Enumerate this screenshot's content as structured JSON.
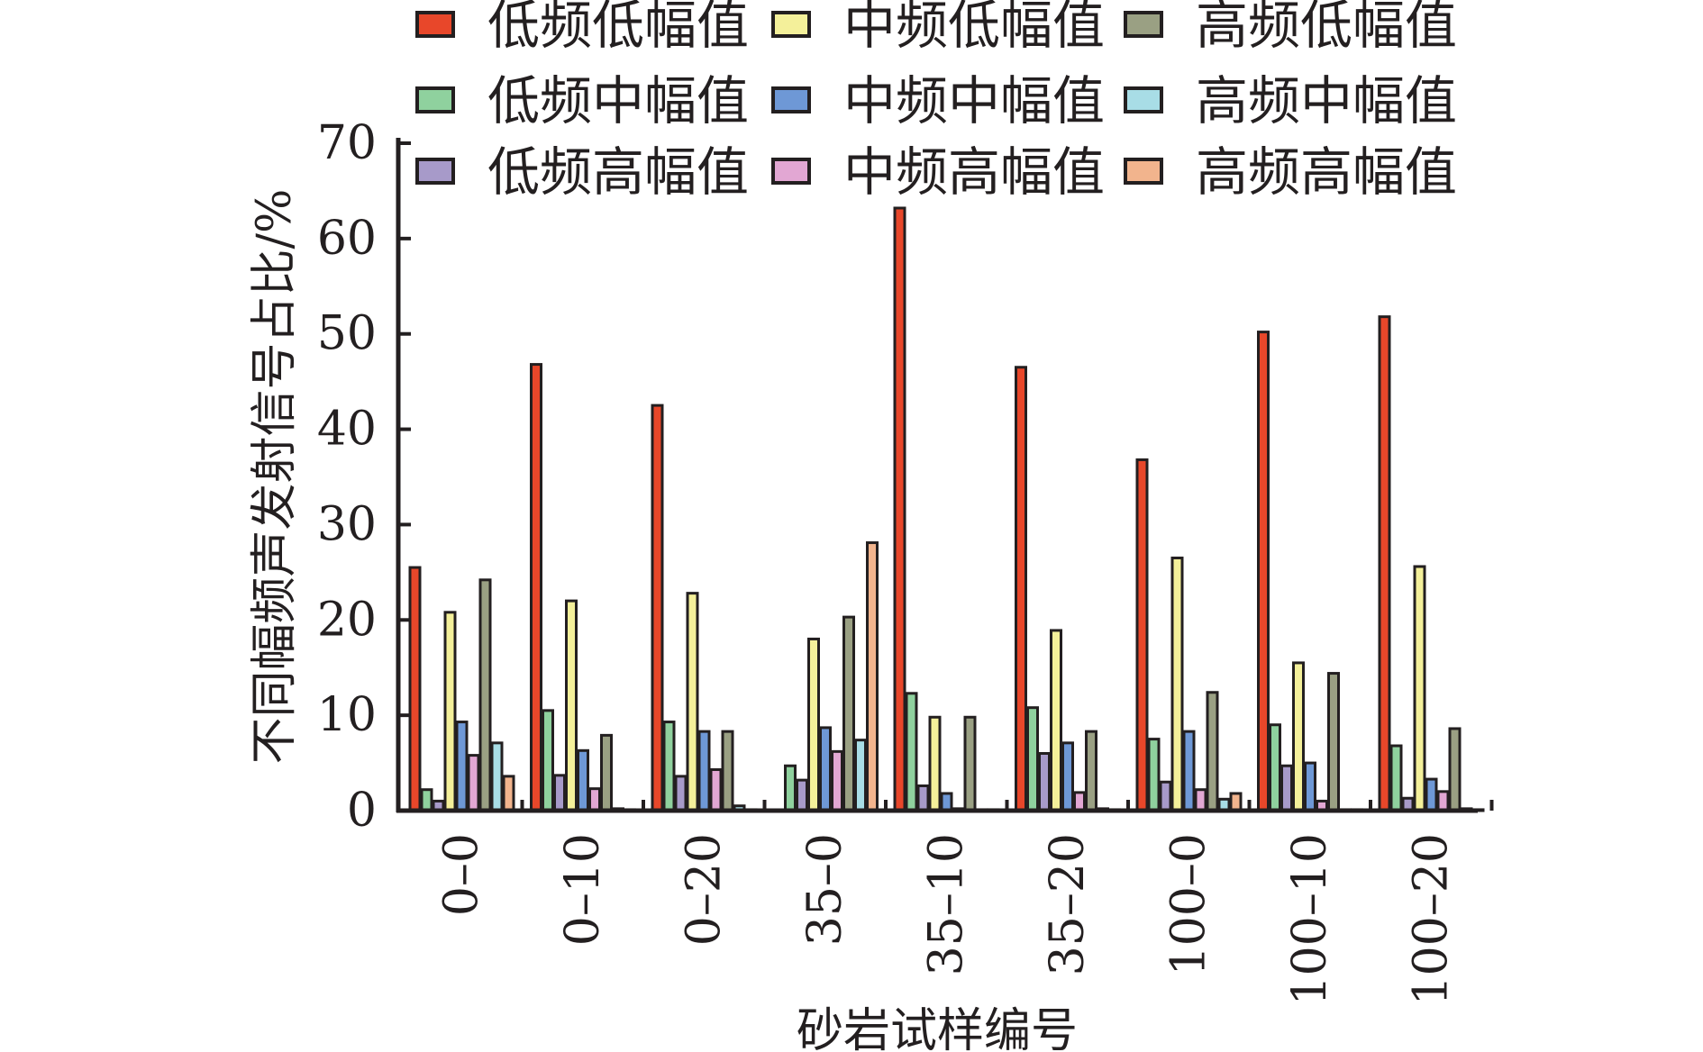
{
  "chart_data": {
    "type": "bar",
    "xlabel": "砂岩试样编号",
    "ylabel": "不同幅频声发射信号占比/%",
    "ylim": [
      0,
      70
    ],
    "yticks": [
      "0",
      "10",
      "20",
      "30",
      "40",
      "50",
      "60",
      "70"
    ],
    "categories": [
      "0–0",
      "0–10",
      "0–20",
      "35–0",
      "35–10",
      "35–20",
      "100–0",
      "100–10",
      "100–20"
    ],
    "legend_position": "top",
    "series": [
      {
        "name": "低频低幅值",
        "color": "#e8472a",
        "values": [
          25.5,
          46.8,
          42.5,
          0,
          63.2,
          46.5,
          36.8,
          50.2,
          51.8
        ]
      },
      {
        "name": "低频中幅值",
        "color": "#8fd19e",
        "values": [
          2.2,
          10.5,
          9.3,
          4.7,
          12.3,
          10.8,
          7.5,
          9.0,
          6.8
        ]
      },
      {
        "name": "低频高幅值",
        "color": "#a79ac9",
        "values": [
          1.0,
          3.7,
          3.6,
          3.2,
          2.6,
          6.0,
          3.0,
          4.7,
          1.3
        ]
      },
      {
        "name": "中频低幅值",
        "color": "#f4f09a",
        "values": [
          20.8,
          22.0,
          22.8,
          18.0,
          9.8,
          18.9,
          26.5,
          15.5,
          25.6
        ]
      },
      {
        "name": "中频中幅值",
        "color": "#6e98d6",
        "values": [
          9.3,
          6.3,
          8.3,
          8.7,
          1.8,
          7.1,
          8.3,
          5.0,
          3.3
        ]
      },
      {
        "name": "中频高幅值",
        "color": "#e2a7d3",
        "values": [
          5.8,
          2.3,
          4.3,
          6.2,
          0.2,
          1.9,
          2.2,
          1.0,
          2.0
        ]
      },
      {
        "name": "高频低幅值",
        "color": "#9aa083",
        "values": [
          24.2,
          7.9,
          8.3,
          20.3,
          9.8,
          8.3,
          12.4,
          14.4,
          8.6
        ]
      },
      {
        "name": "高频中幅值",
        "color": "#a8dde6",
        "values": [
          7.1,
          0.2,
          0.5,
          7.4,
          0.1,
          0.2,
          1.2,
          0.1,
          0.2
        ]
      },
      {
        "name": "高频高幅值",
        "color": "#f2b48d",
        "values": [
          3.6,
          0.1,
          0.1,
          28.1,
          0.1,
          0.1,
          1.8,
          0.1,
          0.1
        ]
      }
    ]
  }
}
